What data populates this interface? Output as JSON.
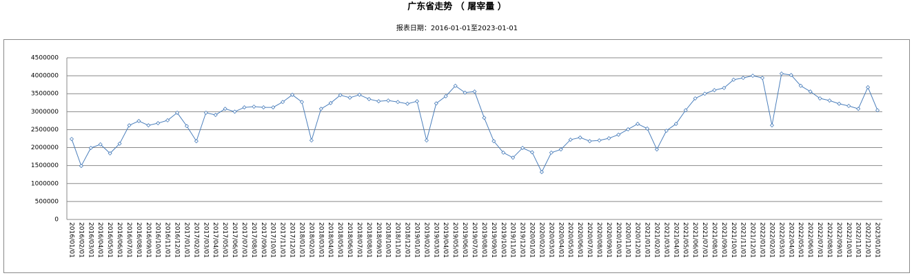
{
  "chart_data": {
    "type": "line",
    "title": "广东省走势 （ 屠宰量 ）",
    "subtitle": "报表日期：2016-01-01至2023-01-01",
    "categories": [
      "2016/01/01",
      "2016/02/01",
      "2016/03/01",
      "2016/04/01",
      "2016/05/01",
      "2016/06/01",
      "2016/07/01",
      "2016/08/01",
      "2016/09/01",
      "2016/10/01",
      "2016/11/01",
      "2016/12/01",
      "2017/01/01",
      "2017/02/01",
      "2017/03/01",
      "2017/04/01",
      "2017/05/01",
      "2017/06/01",
      "2017/07/01",
      "2017/08/01",
      "2017/09/01",
      "2017/10/01",
      "2017/11/01",
      "2017/12/01",
      "2018/01/01",
      "2018/02/01",
      "2018/03/01",
      "2018/04/01",
      "2018/05/01",
      "2018/06/01",
      "2018/07/01",
      "2018/08/01",
      "2018/09/01",
      "2018/10/01",
      "2018/11/01",
      "2018/12/01",
      "2019/01/01",
      "2019/02/01",
      "2019/03/01",
      "2019/04/01",
      "2019/05/01",
      "2019/06/01",
      "2019/07/01",
      "2019/08/01",
      "2019/09/01",
      "2019/10/01",
      "2019/11/01",
      "2019/12/01",
      "2020/01/01",
      "2020/02/01",
      "2020/03/01",
      "2020/04/01",
      "2020/05/01",
      "2020/06/01",
      "2020/07/01",
      "2020/08/01",
      "2020/09/01",
      "2020/10/01",
      "2020/11/01",
      "2020/12/01",
      "2021/01/01",
      "2021/02/01",
      "2021/03/01",
      "2021/04/01",
      "2021/05/01",
      "2021/06/01",
      "2021/07/01",
      "2021/08/01",
      "2021/09/01",
      "2021/10/01",
      "2021/11/01",
      "2021/12/01",
      "2022/01/01",
      "2022/02/01",
      "2022/03/01",
      "2022/04/01",
      "2022/05/01",
      "2022/06/01",
      "2022/07/01",
      "2022/08/01",
      "2022/09/01",
      "2022/10/01",
      "2022/11/01",
      "2022/12/01",
      "2023/01/01"
    ],
    "values": [
      2240000,
      1490000,
      1990000,
      2090000,
      1840000,
      2110000,
      2620000,
      2740000,
      2620000,
      2680000,
      2760000,
      2970000,
      2600000,
      2180000,
      2970000,
      2910000,
      3080000,
      3000000,
      3120000,
      3140000,
      3120000,
      3120000,
      3270000,
      3470000,
      3270000,
      2200000,
      3080000,
      3240000,
      3460000,
      3390000,
      3470000,
      3350000,
      3290000,
      3310000,
      3270000,
      3220000,
      3290000,
      2200000,
      3230000,
      3430000,
      3720000,
      3530000,
      3560000,
      2830000,
      2180000,
      1860000,
      1720000,
      1990000,
      1870000,
      1320000,
      1860000,
      1950000,
      2220000,
      2280000,
      2180000,
      2200000,
      2260000,
      2360000,
      2510000,
      2660000,
      2530000,
      1950000,
      2470000,
      2660000,
      3040000,
      3370000,
      3500000,
      3600000,
      3660000,
      3890000,
      3940000,
      4000000,
      3940000,
      2620000,
      4060000,
      4020000,
      3720000,
      3560000,
      3370000,
      3310000,
      3220000,
      3160000,
      3080000,
      3680000,
      3040000
    ],
    "color": "#4a7ebb",
    "ylim": [
      0,
      4500000
    ],
    "yticks": [
      0,
      500000,
      1000000,
      1500000,
      2000000,
      2500000,
      3000000,
      3500000,
      4000000,
      4500000
    ],
    "grid": true
  }
}
